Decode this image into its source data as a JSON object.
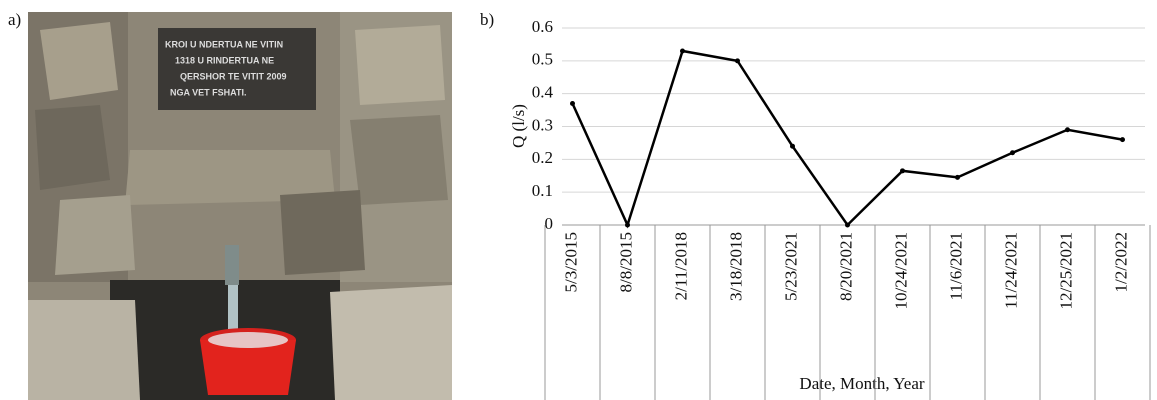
{
  "photo": {
    "label": "a)",
    "plaque_text": [
      "KROI U NDERTUA NE VITIN",
      "1318 U RINDERTUA NE",
      "QERSHOR TE VITIT 2009",
      "NGA VET FSHATI."
    ]
  },
  "chart_data": {
    "type": "line",
    "panel_label": "b)",
    "y_label": "Q (l/s)",
    "x_label": "Date, Month, Year",
    "categories": [
      "5/3/2015",
      "8/8/2015",
      "2/11/2018",
      "3/18/2018",
      "5/23/2021",
      "8/20/2021",
      "10/24/2021",
      "11/6/2021",
      "11/24/2021",
      "12/25/2021",
      "1/2/2022"
    ],
    "values": [
      0.37,
      0,
      0.53,
      0.5,
      0.24,
      0,
      0.165,
      0.145,
      0.22,
      0.29,
      0.26
    ],
    "color": "#000000",
    "ylim": [
      0,
      0.6
    ],
    "yticks": [
      0,
      0.1,
      0.2,
      0.3,
      0.4,
      0.5,
      0.6
    ],
    "grid": true
  }
}
